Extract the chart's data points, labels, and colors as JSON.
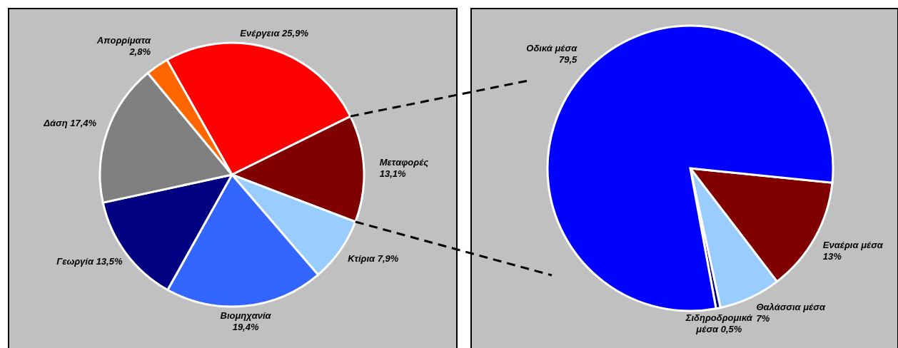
{
  "chart_data": [
    {
      "type": "pie",
      "categories": [
        "Ενέργεια",
        "Μεταφορές",
        "Κτίρια",
        "Βιομηχανία",
        "Γεωργία",
        "Δάση",
        "Απορρίματα"
      ],
      "values": [
        25.9,
        13.1,
        7.9,
        19.4,
        13.5,
        17.4,
        2.8
      ],
      "colors": [
        "#ff0000",
        "#800000",
        "#99ccff",
        "#3366ff",
        "#000080",
        "#808080",
        "#ff6600"
      ],
      "value_labels": [
        "25,9%",
        "13,1%",
        "7,9%",
        "19,4%",
        "13,5%",
        "17,4%",
        "2,8%"
      ]
    },
    {
      "type": "pie",
      "categories": [
        "Εναέρια μέσα",
        "Θαλάσσια μέσα",
        "Σιδηροδρομικά μέσα",
        "Οδικά μέσα"
      ],
      "values": [
        13,
        7,
        0.5,
        79.5
      ],
      "colors": [
        "#800000",
        "#99ccff",
        "#000080",
        "#0000ff"
      ],
      "value_labels": [
        "13%",
        "7%",
        "0,5%",
        "79,5"
      ]
    }
  ]
}
